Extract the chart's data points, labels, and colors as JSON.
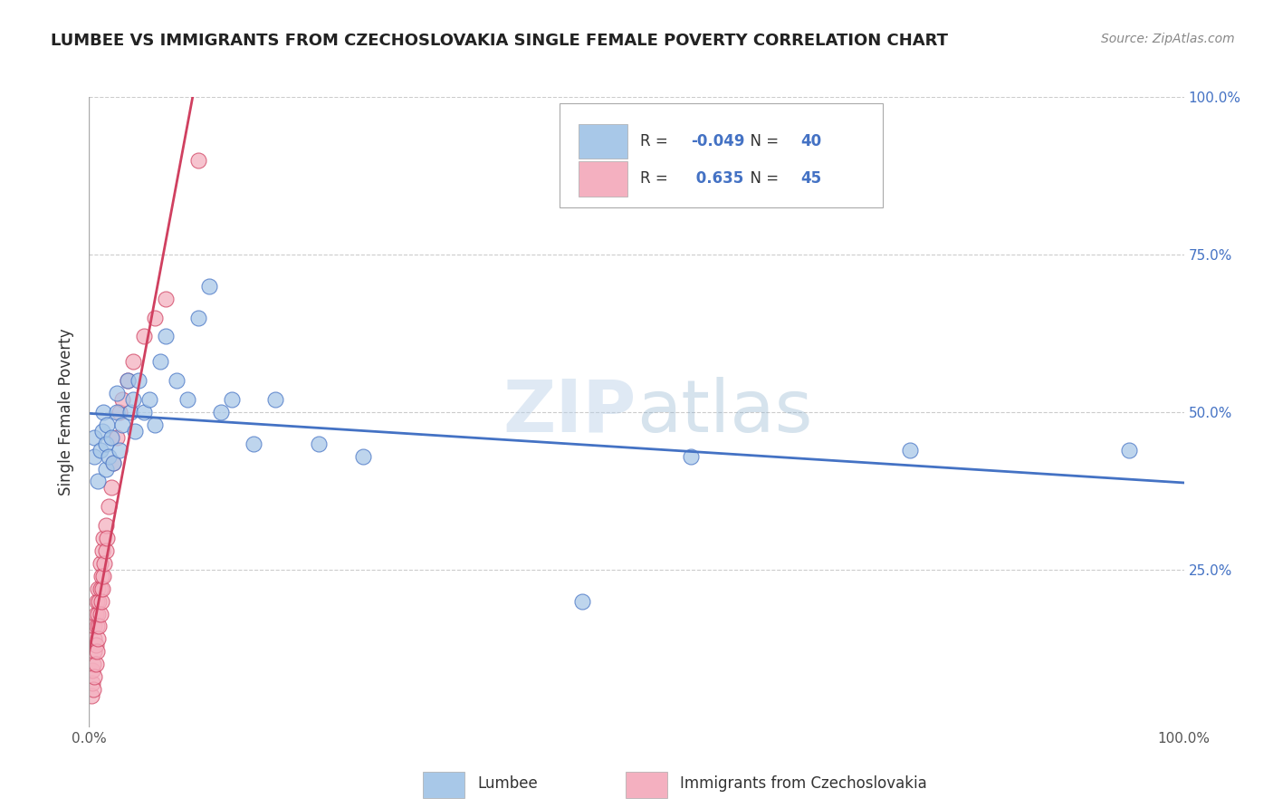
{
  "title": "LUMBEE VS IMMIGRANTS FROM CZECHOSLOVAKIA SINGLE FEMALE POVERTY CORRELATION CHART",
  "source": "Source: ZipAtlas.com",
  "ylabel": "Single Female Poverty",
  "watermark": "ZIPatlas",
  "legend_lumbee": "Lumbee",
  "legend_czech": "Immigrants from Czechoslovakia",
  "R_lumbee": -0.049,
  "N_lumbee": 40,
  "R_czech": 0.635,
  "N_czech": 45,
  "xlim": [
    0.0,
    1.0
  ],
  "ylim": [
    0.0,
    1.0
  ],
  "xtick_labels": [
    "0.0%",
    "",
    "",
    "",
    "100.0%"
  ],
  "xtick_vals": [
    0.0,
    0.25,
    0.5,
    0.75,
    1.0
  ],
  "ytick_vals": [
    0.25,
    0.5,
    0.75,
    1.0
  ],
  "ytick_right_labels": [
    "25.0%",
    "50.0%",
    "75.0%",
    "100.0%"
  ],
  "color_lumbee": "#a8c8e8",
  "color_czech": "#f4b0c0",
  "line_color_lumbee": "#4472c4",
  "line_color_czech": "#d04060",
  "lumbee_x": [
    0.005,
    0.005,
    0.008,
    0.01,
    0.012,
    0.013,
    0.015,
    0.015,
    0.016,
    0.018,
    0.02,
    0.022,
    0.025,
    0.025,
    0.028,
    0.03,
    0.035,
    0.038,
    0.04,
    0.042,
    0.045,
    0.05,
    0.055,
    0.06,
    0.065,
    0.07,
    0.08,
    0.09,
    0.1,
    0.11,
    0.12,
    0.13,
    0.15,
    0.17,
    0.21,
    0.25,
    0.45,
    0.55,
    0.75,
    0.95
  ],
  "lumbee_y": [
    0.43,
    0.46,
    0.39,
    0.44,
    0.47,
    0.5,
    0.41,
    0.45,
    0.48,
    0.43,
    0.46,
    0.42,
    0.5,
    0.53,
    0.44,
    0.48,
    0.55,
    0.5,
    0.52,
    0.47,
    0.55,
    0.5,
    0.52,
    0.48,
    0.58,
    0.62,
    0.55,
    0.52,
    0.65,
    0.7,
    0.5,
    0.52,
    0.45,
    0.52,
    0.45,
    0.43,
    0.2,
    0.43,
    0.44,
    0.44
  ],
  "czech_x": [
    0.002,
    0.003,
    0.003,
    0.004,
    0.004,
    0.005,
    0.005,
    0.005,
    0.005,
    0.006,
    0.006,
    0.006,
    0.007,
    0.007,
    0.007,
    0.008,
    0.008,
    0.008,
    0.009,
    0.009,
    0.01,
    0.01,
    0.01,
    0.011,
    0.011,
    0.012,
    0.012,
    0.013,
    0.013,
    0.014,
    0.015,
    0.015,
    0.016,
    0.018,
    0.02,
    0.022,
    0.025,
    0.028,
    0.03,
    0.035,
    0.04,
    0.05,
    0.06,
    0.07,
    0.1
  ],
  "czech_y": [
    0.05,
    0.07,
    0.09,
    0.06,
    0.1,
    0.08,
    0.12,
    0.14,
    0.16,
    0.1,
    0.13,
    0.18,
    0.12,
    0.16,
    0.2,
    0.14,
    0.18,
    0.22,
    0.16,
    0.2,
    0.18,
    0.22,
    0.26,
    0.2,
    0.24,
    0.22,
    0.28,
    0.24,
    0.3,
    0.26,
    0.28,
    0.32,
    0.3,
    0.35,
    0.38,
    0.42,
    0.46,
    0.5,
    0.52,
    0.55,
    0.58,
    0.62,
    0.65,
    0.68,
    0.9
  ],
  "background_color": "#ffffff",
  "grid_color": "#cccccc"
}
